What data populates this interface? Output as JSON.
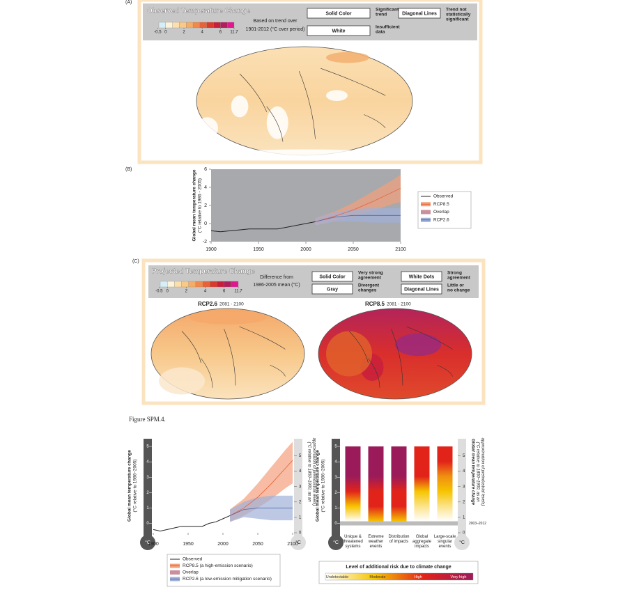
{
  "panel_a": {
    "label": "(A)",
    "title": "Observed Temperature Change",
    "note": [
      "Based on trend over",
      "1901-2012 (°C over period)"
    ],
    "colorbar": {
      "ticks": [
        -0.5,
        0,
        2,
        4,
        6,
        11.7
      ],
      "colors": [
        "#d6eef5",
        "#fdf3d8",
        "#fbe0ae",
        "#f8c987",
        "#f5ad66",
        "#f0894a",
        "#e86137",
        "#d93a2c",
        "#c81e3c",
        "#b01e5d",
        "#e0188f"
      ]
    },
    "keys": [
      {
        "box": "Solid Color",
        "text": [
          "Significant",
          "trend"
        ]
      },
      {
        "box": "White",
        "text": [
          "Insufficient",
          "data"
        ]
      },
      {
        "box": "Diagonal Lines",
        "text": [
          "Trend not",
          "statistically",
          "significant"
        ]
      }
    ]
  },
  "panel_c": {
    "label": "(C)",
    "title": "Projected Temperature Change",
    "note": [
      "Difference from",
      "1986-2005 mean (°C)"
    ],
    "keys": [
      {
        "box": "Solid Color",
        "text": [
          "Very strong",
          "agreement"
        ]
      },
      {
        "box": "Gray",
        "text": [
          "Divergent",
          "changes"
        ]
      },
      {
        "box": "White Dots",
        "text": [
          "Strong",
          "agreement"
        ]
      },
      {
        "box": "Diagonal Lines",
        "text": [
          "Little or",
          "no change"
        ]
      }
    ],
    "maps": [
      {
        "scenario": "RCP2.6",
        "period": "2081 - 2100"
      },
      {
        "scenario": "RCP8.5",
        "period": "2081 - 2100"
      }
    ]
  },
  "caption": "Figure SPM.4.",
  "chart_data": [
    {
      "type": "line",
      "label": "(B)",
      "ylabel": [
        "Global mean temperature change",
        "(°C relative to 1986 - 2005)"
      ],
      "xlim": [
        1900,
        2100
      ],
      "ylim": [
        -2,
        6
      ],
      "xticks": [
        1900,
        1950,
        2000,
        2050,
        2100
      ],
      "yticks": [
        -2,
        0,
        2,
        4,
        6
      ],
      "series": [
        {
          "name": "Observed",
          "color": "#222222",
          "x": [
            1900,
            1910,
            1920,
            1930,
            1940,
            1950,
            1960,
            1970,
            1980,
            1990,
            2000,
            2010
          ],
          "values": [
            -0.8,
            -0.9,
            -0.8,
            -0.7,
            -0.6,
            -0.6,
            -0.6,
            -0.6,
            -0.4,
            -0.2,
            0,
            0.2
          ]
        },
        {
          "name": "RCP8.5",
          "color": "#e8603c",
          "band": "#f4a07c",
          "x": [
            2010,
            2030,
            2050,
            2070,
            2090,
            2100
          ],
          "values": [
            0.2,
            0.8,
            1.5,
            2.4,
            3.4,
            3.9
          ],
          "lower": [
            -0.2,
            0.3,
            0.8,
            1.4,
            2.1,
            2.4
          ],
          "upper": [
            0.6,
            1.3,
            2.3,
            3.5,
            4.7,
            5.4
          ]
        },
        {
          "name": "Overlap",
          "color": "#c98f9c"
        },
        {
          "name": "RCP2.6",
          "color": "#5468a8",
          "band": "#9fb0d8",
          "x": [
            2010,
            2030,
            2050,
            2070,
            2090,
            2100
          ],
          "values": [
            0.2,
            0.7,
            0.9,
            0.9,
            0.9,
            0.9
          ],
          "lower": [
            -0.2,
            0.2,
            0.2,
            0.1,
            0.1,
            0.1
          ],
          "upper": [
            0.6,
            1.2,
            1.6,
            1.7,
            1.7,
            1.7
          ]
        }
      ]
    },
    {
      "type": "line",
      "ylabel": [
        "Global mean temperature change",
        "(°C relative to 1986–2005)"
      ],
      "y2label": [
        "(°C relative to 1850–1900, as an",
        "approximation of preindustrial levels)"
      ],
      "unit": "°C",
      "xlim": [
        1900,
        2100
      ],
      "ylim": [
        -0.61,
        5.5
      ],
      "xticks": [
        1900,
        1950,
        2000,
        2050,
        2100
      ],
      "yticks": [
        0,
        1,
        2,
        3,
        4,
        5
      ],
      "y2lim": [
        0,
        6.11
      ],
      "y2ticks": [
        0,
        1,
        2,
        3,
        4,
        5
      ],
      "series": [
        {
          "name": "Observed",
          "color": "#222222",
          "x": [
            1900,
            1910,
            1920,
            1930,
            1940,
            1950,
            1960,
            1970,
            1980,
            1990,
            2000,
            2010
          ],
          "values": [
            -0.4,
            -0.5,
            -0.4,
            -0.3,
            -0.2,
            -0.2,
            -0.2,
            -0.2,
            0,
            0.1,
            0.3,
            0.5
          ]
        },
        {
          "name": "RCP8.5 (a high-emission scenario)",
          "color": "#e8603c",
          "band": "#f4a07c",
          "x": [
            2010,
            2030,
            2050,
            2070,
            2090,
            2100
          ],
          "values": [
            0.5,
            1.0,
            1.7,
            2.6,
            3.6,
            4.1
          ],
          "lower": [
            0.1,
            0.5,
            1.0,
            1.6,
            2.3,
            2.6
          ],
          "upper": [
            0.9,
            1.6,
            2.6,
            3.7,
            4.8,
            5.3
          ]
        },
        {
          "name": "Overlap",
          "color": "#c98f9c"
        },
        {
          "name": "RCP2.6 (a low-emission mitigation scenario)",
          "color": "#5468a8",
          "band": "#9fb0d8",
          "x": [
            2010,
            2030,
            2050,
            2070,
            2090,
            2100
          ],
          "values": [
            0.5,
            0.9,
            1.0,
            1.0,
            1.0,
            1.0
          ],
          "lower": [
            0.1,
            0.4,
            0.3,
            0.2,
            0.2,
            0.2
          ],
          "upper": [
            0.9,
            1.4,
            1.7,
            1.8,
            1.8,
            1.8
          ]
        }
      ]
    },
    {
      "type": "bar",
      "ylabel": [
        "Global mean temperature change",
        "(°C relative to 1986–2005)"
      ],
      "y2label": [
        "Global mean temperature change",
        "(°C relative to 1850–1900, as an",
        "approximation of preindustrial levels)"
      ],
      "unit": "°C",
      "ylim": [
        -0.61,
        5.5
      ],
      "yticks": [
        0,
        1,
        2,
        3,
        4,
        5
      ],
      "y2lim": [
        0,
        6.11
      ],
      "y2ticks": [
        0,
        1,
        2,
        3,
        4,
        5
      ],
      "reference": {
        "value": 0,
        "label": "2003–2012"
      },
      "categories": [
        "Unique & threatened systems",
        "Extreme weather events",
        "Distribution of impacts",
        "Global aggregate impacts",
        "Large-scale singular events"
      ],
      "values": [
        5,
        5,
        5,
        5,
        5
      ],
      "gradients": [
        [
          "#ffffff",
          "#f6c400",
          "#e2231a",
          "#9b1b5a",
          "#9b1b5a",
          "#9b1b5a"
        ],
        [
          "#f6c400",
          "#e2231a",
          "#e2231a",
          "#9b1b5a",
          "#9b1b5a",
          "#9b1b5a"
        ],
        [
          "#f6c400",
          "#e2231a",
          "#e2231a",
          "#9b1b5a",
          "#9b1b5a",
          "#9b1b5a"
        ],
        [
          "#ffffff",
          "#fbe38a",
          "#f6c400",
          "#e2231a",
          "#e2231a",
          "#e2231a"
        ],
        [
          "#ffffff",
          "#fbe38a",
          "#f6c400",
          "#f09010",
          "#e2231a",
          "#e2231a"
        ]
      ],
      "risk_legend": {
        "title": "Level of additional risk due to climate change",
        "levels": [
          "Undetectable",
          "Moderate",
          "High",
          "Very high"
        ],
        "colors": [
          "#ffffff",
          "#f6c400",
          "#e2231a",
          "#9b1b5a"
        ]
      }
    }
  ]
}
